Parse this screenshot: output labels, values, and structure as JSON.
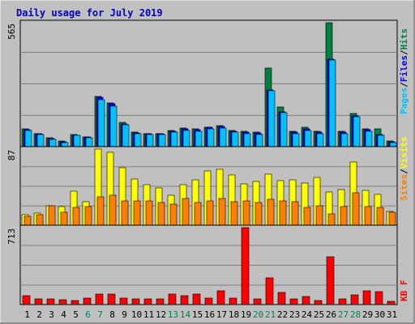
{
  "title": "Daily usage for July 2019",
  "colors": {
    "background": "#C0C0C0",
    "title": "#0000C0",
    "hits": "#008040",
    "files": "#0000FF",
    "pages": "#00C0FF",
    "visits": "#FFFF00",
    "sites": "#FF8000",
    "kbytes": "#FF0000",
    "weekend_label": "#00805C",
    "label": "#000000"
  },
  "chart_data": [
    {
      "type": "bar",
      "panel": "top",
      "ymax_label": "565",
      "ylim": [
        0,
        565
      ],
      "legend": {
        "pages": "Pages",
        "files": "Files",
        "hits": "Hits",
        "sep1": "/",
        "sep2": "/"
      },
      "x": [
        1,
        2,
        3,
        4,
        5,
        6,
        7,
        8,
        9,
        10,
        11,
        12,
        13,
        14,
        15,
        16,
        17,
        18,
        19,
        20,
        21,
        22,
        23,
        24,
        25,
        26,
        27,
        28,
        29,
        30,
        31
      ],
      "series": [
        {
          "name": "Hits",
          "values": [
            80,
            60,
            40,
            25,
            55,
            45,
            230,
            200,
            110,
            65,
            60,
            60,
            75,
            85,
            80,
            90,
            95,
            75,
            70,
            65,
            360,
            180,
            70,
            90,
            70,
            565,
            70,
            150,
            80,
            80,
            25
          ]
        },
        {
          "name": "Files",
          "values": [
            78,
            58,
            38,
            23,
            52,
            44,
            225,
            195,
            105,
            63,
            58,
            58,
            72,
            82,
            77,
            87,
            92,
            72,
            67,
            62,
            260,
            160,
            68,
            82,
            67,
            400,
            67,
            140,
            78,
            57,
            22
          ]
        },
        {
          "name": "Pages",
          "values": [
            75,
            55,
            35,
            20,
            50,
            40,
            215,
            185,
            100,
            60,
            55,
            55,
            65,
            75,
            70,
            80,
            85,
            65,
            60,
            55,
            255,
            155,
            60,
            75,
            60,
            395,
            60,
            135,
            70,
            50,
            20
          ]
        }
      ]
    },
    {
      "type": "bar",
      "panel": "middle",
      "ymax_label": "87",
      "ylim": [
        0,
        87
      ],
      "legend": {
        "sites": "Sites",
        "visits": "Visits",
        "sep": "/"
      },
      "x": [
        1,
        2,
        3,
        4,
        5,
        6,
        7,
        8,
        9,
        10,
        11,
        12,
        13,
        14,
        15,
        16,
        17,
        18,
        19,
        20,
        21,
        22,
        23,
        24,
        25,
        26,
        27,
        28,
        29,
        30,
        31
      ],
      "series": [
        {
          "name": "Visits",
          "values": [
            12,
            14,
            22,
            21,
            39,
            27,
            87,
            83,
            66,
            53,
            46,
            43,
            34,
            46,
            52,
            62,
            64,
            57,
            47,
            50,
            58,
            51,
            52,
            48,
            55,
            38,
            41,
            72,
            40,
            35,
            16
          ]
        },
        {
          "name": "Sites",
          "values": [
            10,
            12,
            22,
            15,
            20,
            21,
            32,
            34,
            28,
            28,
            28,
            26,
            24,
            31,
            26,
            28,
            31,
            27,
            28,
            26,
            30,
            28,
            27,
            20,
            22,
            13,
            21,
            37,
            21,
            20,
            15
          ]
        }
      ]
    },
    {
      "type": "bar",
      "panel": "bottom",
      "ymax_label": "713",
      "ylim": [
        0,
        713
      ],
      "legend": {
        "kbytes": "KB F"
      },
      "x": [
        1,
        2,
        3,
        4,
        5,
        6,
        7,
        8,
        9,
        10,
        11,
        12,
        13,
        14,
        15,
        16,
        17,
        18,
        19,
        20,
        21,
        22,
        23,
        24,
        25,
        26,
        27,
        28,
        29,
        30,
        31
      ],
      "x_labels": [
        "1",
        "2",
        "3",
        "4",
        "5",
        "6",
        "7",
        "8",
        "9",
        "10",
        "11",
        "12",
        "13",
        "14",
        "15",
        "16",
        "17",
        "18",
        "19",
        "20",
        "21",
        "22",
        "23",
        "24",
        "25",
        "26",
        "27",
        "28",
        "29",
        "30",
        "31"
      ],
      "weekend_days": [
        6,
        7,
        13,
        14,
        20,
        21,
        27,
        28
      ],
      "series": [
        {
          "name": "KB F",
          "values": [
            80,
            50,
            50,
            45,
            40,
            60,
            95,
            95,
            60,
            55,
            50,
            50,
            100,
            80,
            100,
            60,
            130,
            60,
            713,
            50,
            250,
            110,
            50,
            75,
            35,
            440,
            50,
            90,
            130,
            120,
            30
          ]
        }
      ]
    }
  ]
}
